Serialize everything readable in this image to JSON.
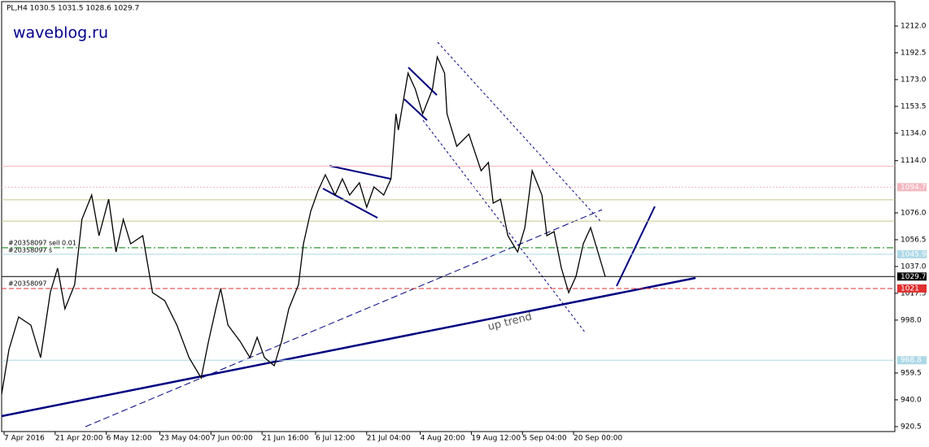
{
  "chart_data": {
    "type": "line",
    "title": "PL,H4 1030.5 1031.5 1028.6 1029.7",
    "watermark": "waveblog.ru",
    "annotations": [
      "up trend",
      "#20358097 sell 0.01",
      "#20358097 s",
      "#20358097"
    ],
    "x": [
      0,
      3,
      7,
      12,
      16,
      20,
      23,
      26,
      30,
      33,
      37,
      40,
      44,
      47,
      50,
      53,
      58,
      62,
      67,
      72,
      77,
      82,
      85,
      88,
      90,
      93,
      98,
      102,
      105,
      108,
      112,
      115,
      118,
      122,
      124,
      127,
      130,
      133,
      137,
      140,
      143,
      147,
      150,
      153,
      157,
      160,
      162,
      163,
      167,
      170,
      173,
      177,
      179,
      182,
      183,
      187,
      192,
      197,
      200,
      202,
      205,
      208,
      212,
      215,
      218,
      222,
      224,
      227,
      230,
      233,
      236,
      239,
      242,
      245,
      248
    ],
    "series": [
      {
        "name": "PL,H4",
        "color": "#000000",
        "values": [
          944.1,
          976.6,
          1000.3,
          994.4,
          970.7,
          1018.0,
          1035.8,
          1006.2,
          1023.9,
          1071.3,
          1089.0,
          1059.4,
          1086.0,
          1047.6,
          1071.3,
          1053.5,
          1059.4,
          1018.0,
          1012.1,
          994.4,
          970.7,
          955.9,
          982.5,
          1006.2,
          1021.0,
          994.4,
          982.5,
          970.7,
          985.5,
          970.7,
          964.8,
          982.5,
          1006.2,
          1023.9,
          1053.5,
          1077.2,
          1092.0,
          1103.8,
          1089.0,
          1100.8,
          1089.0,
          1097.9,
          1080.1,
          1094.9,
          1089.0,
          1100.8,
          1148.1,
          1136.3,
          1177.7,
          1165.9,
          1148.1,
          1165.9,
          1189.5,
          1177.7,
          1148.1,
          1124.5,
          1133.3,
          1106.7,
          1112.7,
          1083.1,
          1086.0,
          1059.4,
          1047.6,
          1065.3,
          1106.7,
          1089.0,
          1059.4,
          1062.4,
          1035.8,
          1018.0,
          1029.9,
          1053.5,
          1065.3,
          1047.6,
          1029.7
        ]
      }
    ],
    "levels": [
      {
        "value": 1110.0,
        "color": "#f4b8c0",
        "tag": false
      },
      {
        "value": 1094.7,
        "color": "#f4b8c0",
        "tag": true
      },
      {
        "value": 1085.5,
        "color": "#c8c88a",
        "tag": false
      },
      {
        "value": 1070.0,
        "color": "#c8c88a",
        "tag": false
      },
      {
        "value": 1050.6,
        "color": "#008000",
        "tag": false
      },
      {
        "value": 1045.9,
        "color": "#add8e6",
        "tag": true
      },
      {
        "value": 1029.7,
        "color": "#000000",
        "tag": true
      },
      {
        "value": 1021.0,
        "color": "#e03030",
        "tag": true
      },
      {
        "value": 968.8,
        "color": "#add8e6",
        "tag": true
      }
    ],
    "xlim": [
      0,
      367
    ],
    "xticks": [
      {
        "value": 1,
        "label": "7 Apr 2016"
      },
      {
        "value": 22,
        "label": "21 Apr 20:00"
      },
      {
        "value": 43,
        "label": "6 May 12:00"
      },
      {
        "value": 65,
        "label": "23 May 04:00"
      },
      {
        "value": 86,
        "label": "7 Jun 00:00"
      },
      {
        "value": 107,
        "label": "21 Jun 16:00"
      },
      {
        "value": 129,
        "label": "6 Jul 12:00"
      },
      {
        "value": 150,
        "label": "21 Jul 04:00"
      },
      {
        "value": 172,
        "label": "4 Aug 20:00"
      },
      {
        "value": 193,
        "label": "19 Aug 12:00"
      },
      {
        "value": 214,
        "label": "5 Sep 04:00"
      },
      {
        "value": 235,
        "label": "20 Sep 00:00"
      }
    ],
    "ylim": [
      917.5,
      1225
    ],
    "yticks": [
      {
        "value": 1212,
        "label": "1212.0"
      },
      {
        "value": 1192.5,
        "label": "1192.5"
      },
      {
        "value": 1173,
        "label": "1173.0"
      },
      {
        "value": 1153.5,
        "label": "1153.5"
      },
      {
        "value": 1134,
        "label": "1134.0"
      },
      {
        "value": 1114,
        "label": "1114.0"
      },
      {
        "value": 1076,
        "label": "1076.0"
      },
      {
        "value": 1056.5,
        "label": "1056.5"
      },
      {
        "value": 1037,
        "label": "1037.0"
      },
      {
        "value": 1017.5,
        "label": "1017.5"
      },
      {
        "value": 998,
        "label": "998.0"
      },
      {
        "value": 959.5,
        "label": "959.5"
      },
      {
        "value": 940,
        "label": "940.0"
      },
      {
        "value": 920.5,
        "label": "920.5"
      }
    ]
  }
}
